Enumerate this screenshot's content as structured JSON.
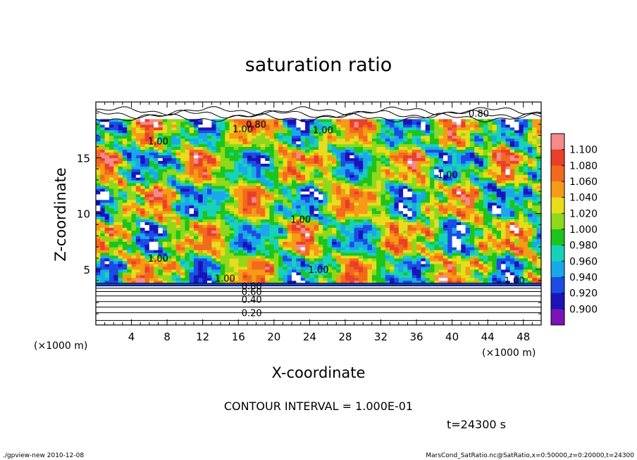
{
  "chart_data": {
    "type": "heatmap",
    "title": "saturation ratio",
    "xlabel": "X-coordinate",
    "ylabel": "Z-coordinate",
    "x_unit": "(×1000 m)",
    "z_unit": "(×1000 m)",
    "xlim": [
      0,
      50
    ],
    "ylim": [
      0,
      20
    ],
    "x_ticks": [
      4,
      8,
      12,
      16,
      20,
      24,
      28,
      32,
      36,
      40,
      44,
      48
    ],
    "y_ticks": [
      5,
      10,
      15
    ],
    "colorbar": {
      "levels": [
        "1.100",
        "1.080",
        "1.060",
        "1.040",
        "1.020",
        "1.000",
        "0.980",
        "0.960",
        "0.940",
        "0.920",
        "0.900"
      ],
      "colors": [
        "#f48a8a",
        "#ea3f2a",
        "#f26a1c",
        "#f79a16",
        "#e8dc1c",
        "#8fd81c",
        "#1cc41c",
        "#17d2b8",
        "#1aa8ea",
        "#1c4ce4",
        "#1a14b8",
        "#7a14b4"
      ]
    },
    "contour_labels": [
      {
        "text": "0.80",
        "x": 43.0,
        "z": 19.0
      },
      {
        "text": "0.80",
        "x": 18.0,
        "z": 18.0
      },
      {
        "text": "1.00",
        "x": 16.5,
        "z": 17.6
      },
      {
        "text": "1.00",
        "x": 25.5,
        "z": 17.5
      },
      {
        "text": "1.00",
        "x": 7.0,
        "z": 16.5
      },
      {
        "text": "1.00",
        "x": 39.5,
        "z": 13.5
      },
      {
        "text": "1.00",
        "x": 23.0,
        "z": 9.5
      },
      {
        "text": "1.00",
        "x": 7.0,
        "z": 6.0
      },
      {
        "text": "1.00",
        "x": 25.0,
        "z": 5.0
      },
      {
        "text": "1.00",
        "x": 14.5,
        "z": 4.2
      },
      {
        "text": "1.00",
        "x": 47.0,
        "z": 4.0
      },
      {
        "text": "0.80",
        "x": 17.5,
        "z": 3.5
      },
      {
        "text": "0.60",
        "x": 17.5,
        "z": 3.0
      },
      {
        "text": "0.40",
        "x": 17.5,
        "z": 2.3
      },
      {
        "text": "0.20",
        "x": 17.5,
        "z": 1.1
      }
    ]
  },
  "contour_interval": "CONTOUR INTERVAL = 1.000E-01",
  "time_label": "t=24300  s",
  "footer_left": "./gpview-new   2010-12-08",
  "footer_right": "MarsCond_SatRatio.nc@SatRatio,x=0:50000,z=0:20000,t=24300"
}
